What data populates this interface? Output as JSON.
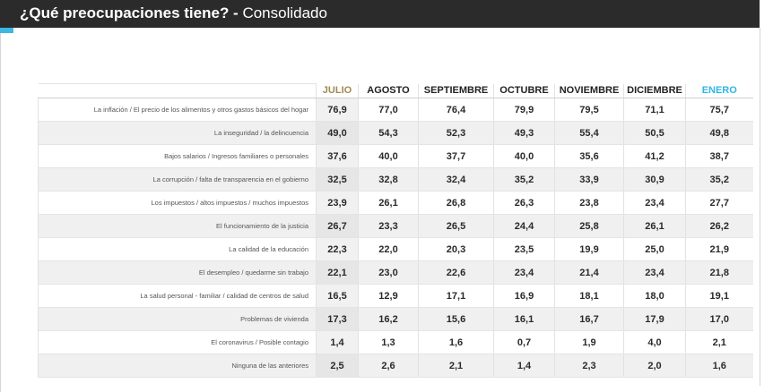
{
  "header": {
    "question": "¿Qué preocupaciones tiene?",
    "separator": " - ",
    "subtitle": "Consolidado",
    "accent_color": "#3db8e0"
  },
  "table": {
    "columns": [
      "JULIO",
      "AGOSTO",
      "SEPTIEMBRE",
      "OCTUBRE",
      "NOVIEMBRE",
      "DICIEMBRE",
      "ENERO"
    ],
    "highlight_colors": {
      "JULIO": "#a08a52",
      "ENERO": "#2fb6e4"
    },
    "rows": [
      {
        "label": "La inflación / El precio de los alimentos y otros gastos básicos del hogar",
        "values": [
          "76,9",
          "77,0",
          "76,4",
          "79,9",
          "79,5",
          "71,1",
          "75,7"
        ]
      },
      {
        "label": "La inseguridad / la delincuencia",
        "values": [
          "49,0",
          "54,3",
          "52,3",
          "49,3",
          "55,4",
          "50,5",
          "49,8"
        ]
      },
      {
        "label": "Bajos salarios / Ingresos familiares o personales",
        "values": [
          "37,6",
          "40,0",
          "37,7",
          "40,0",
          "35,6",
          "41,2",
          "38,7"
        ]
      },
      {
        "label": "La corrupción / falta de transparencia en el gobierno",
        "values": [
          "32,5",
          "32,8",
          "32,4",
          "35,2",
          "33,9",
          "30,9",
          "35,2"
        ]
      },
      {
        "label": "Los impuestos / altos impuestos / muchos impuestos",
        "values": [
          "23,9",
          "26,1",
          "26,8",
          "26,3",
          "23,8",
          "23,4",
          "27,7"
        ]
      },
      {
        "label": "El funcionamiento de la justicia",
        "values": [
          "26,7",
          "23,3",
          "26,5",
          "24,4",
          "25,8",
          "26,1",
          "26,2"
        ]
      },
      {
        "label": "La calidad de la educación",
        "values": [
          "22,3",
          "22,0",
          "20,3",
          "23,5",
          "19,9",
          "25,0",
          "21,9"
        ]
      },
      {
        "label": "El desempleo / quedarme sin trabajo",
        "values": [
          "22,1",
          "23,0",
          "22,6",
          "23,4",
          "21,4",
          "23,4",
          "21,8"
        ]
      },
      {
        "label": "La salud personal - familiar / calidad de centros de salud",
        "values": [
          "16,5",
          "12,9",
          "17,1",
          "16,9",
          "18,1",
          "18,0",
          "19,1"
        ]
      },
      {
        "label": "Problemas de vivienda",
        "values": [
          "17,3",
          "16,2",
          "15,6",
          "16,1",
          "16,7",
          "17,9",
          "17,0"
        ]
      },
      {
        "label": "El coronavirus / Posible contagio",
        "values": [
          "1,4",
          "1,3",
          "1,6",
          "0,7",
          "1,9",
          "4,0",
          "2,1"
        ]
      },
      {
        "label": "Ninguna de las anteriores",
        "values": [
          "2,5",
          "2,6",
          "2,1",
          "1,4",
          "2,3",
          "2,0",
          "1,6"
        ]
      }
    ]
  }
}
